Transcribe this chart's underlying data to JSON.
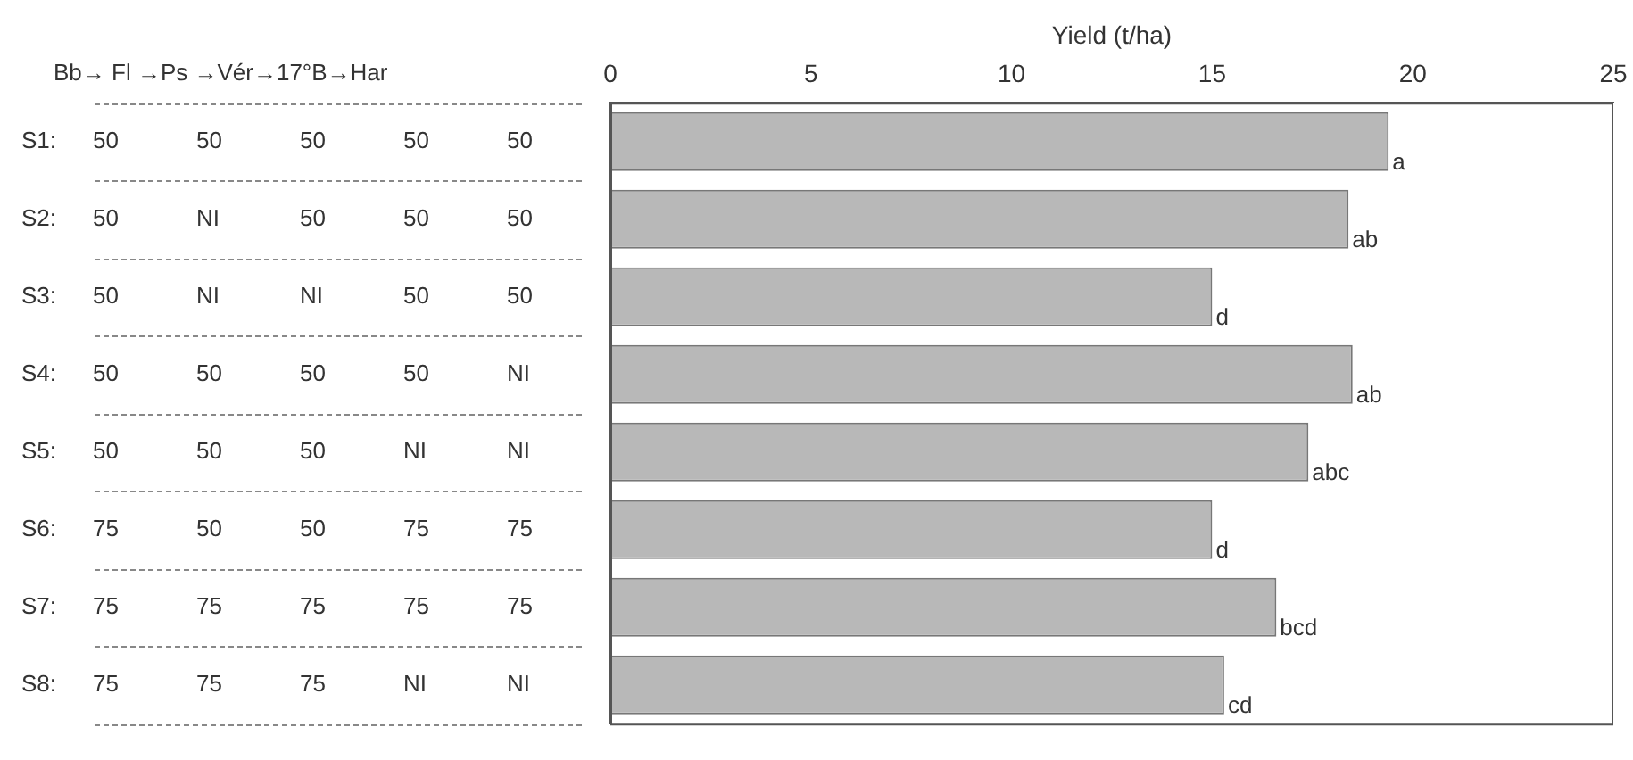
{
  "chart_data": {
    "type": "bar",
    "orientation": "horizontal",
    "xlabel": "Yield (t/ha)",
    "categories": [
      null,
      null,
      null,
      null,
      null,
      null,
      null,
      null
    ],
    "values": [
      19.4,
      18.4,
      15.0,
      18.5,
      17.4,
      15.0,
      16.6,
      15.3
    ],
    "color": "#b8b8b8",
    "xlim": [
      0,
      25
    ],
    "xticks": [
      0,
      5,
      10,
      15,
      20,
      25
    ],
    "grid": false,
    "annotations": [
      "Bb→ Fl →Ps →Vér→17°B→Har",
      "S1: 50 50 50 50 50",
      "S2: 50 NI 50 50 50",
      "S3: 50 NI NI 50 50",
      "S4: 50 50 50 50 NI",
      "S5: 50 50 50 NI NI",
      "S6: 75 50 50 75 75",
      "S7: 75 75 75 75 75",
      "S8: 75 75 75 NI NI",
      {
        "text": "a",
        "x": 19.4
      },
      {
        "text": "ab",
        "x": 18.4
      },
      {
        "text": "d",
        "x": 15.0
      },
      {
        "text": "ab",
        "x": 18.5
      },
      {
        "text": "abc",
        "x": 17.4
      },
      {
        "text": "d",
        "x": 15.0
      },
      {
        "text": "bcd",
        "x": 16.6
      },
      {
        "text": "cd",
        "x": 15.3
      }
    ]
  }
}
